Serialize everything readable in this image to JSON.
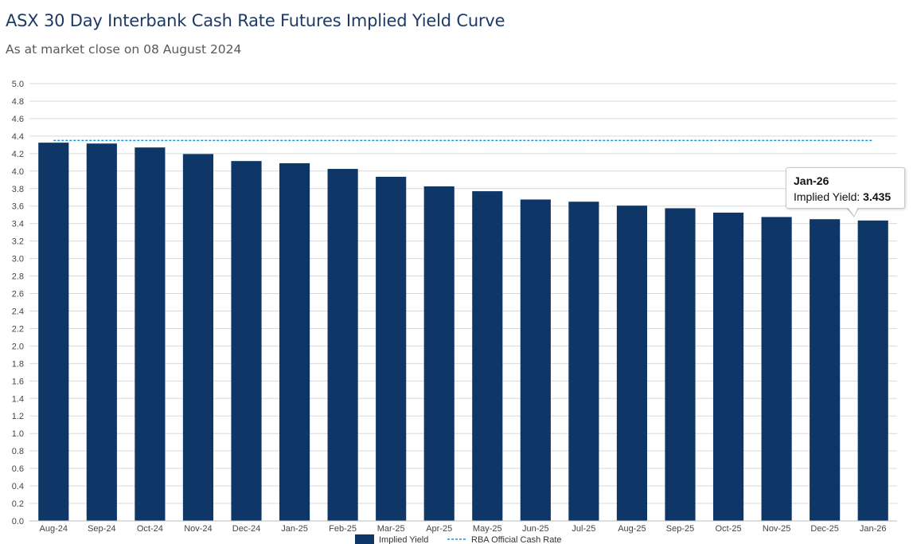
{
  "header": {
    "title": "ASX 30 Day Interbank Cash Rate Futures Implied Yield Curve",
    "subtitle": "As at market close on 08 August 2024"
  },
  "colors": {
    "bar": "#0e3768",
    "cash_rate_line": "#1e90d6",
    "gridline": "#d9d9d9",
    "title": "#1e3a64"
  },
  "tooltip": {
    "title": "Jan-26",
    "label": "Implied Yield:",
    "value": "3.435"
  },
  "chart_data": {
    "type": "bar",
    "title": "ASX 30 Day Interbank Cash Rate Futures Implied Yield Curve",
    "subtitle": "As at market close on 08 August 2024",
    "xlabel": "",
    "ylabel": "",
    "ylim": [
      0,
      5.0
    ],
    "yticks": [
      "0.0",
      "0.2",
      "0.4",
      "0.6",
      "0.8",
      "1.0",
      "1.2",
      "1.4",
      "1.6",
      "1.8",
      "2.0",
      "2.2",
      "2.4",
      "2.6",
      "2.8",
      "3.0",
      "3.2",
      "3.4",
      "3.6",
      "3.8",
      "4.0",
      "4.2",
      "4.4",
      "4.6",
      "4.8",
      "5.0"
    ],
    "grid": true,
    "legend_position": "bottom",
    "categories": [
      "Aug-24",
      "Sep-24",
      "Oct-24",
      "Nov-24",
      "Dec-24",
      "Jan-25",
      "Feb-25",
      "Mar-25",
      "Apr-25",
      "May-25",
      "Jun-25",
      "Jul-25",
      "Aug-25",
      "Sep-25",
      "Oct-25",
      "Nov-25",
      "Dec-25",
      "Jan-26"
    ],
    "series": [
      {
        "name": "Implied Yield",
        "type": "bar",
        "values": [
          4.325,
          4.315,
          4.27,
          4.195,
          4.115,
          4.09,
          4.025,
          3.935,
          3.825,
          3.77,
          3.675,
          3.65,
          3.605,
          3.575,
          3.525,
          3.475,
          3.45,
          3.435
        ]
      },
      {
        "name": "RBA Official Cash Rate",
        "type": "line",
        "style": "dashed",
        "values": [
          4.35,
          4.35,
          4.35,
          4.35,
          4.35,
          4.35,
          4.35,
          4.35,
          4.35,
          4.35,
          4.35,
          4.35,
          4.35,
          4.35,
          4.35,
          4.35,
          4.35,
          4.35
        ]
      }
    ]
  }
}
